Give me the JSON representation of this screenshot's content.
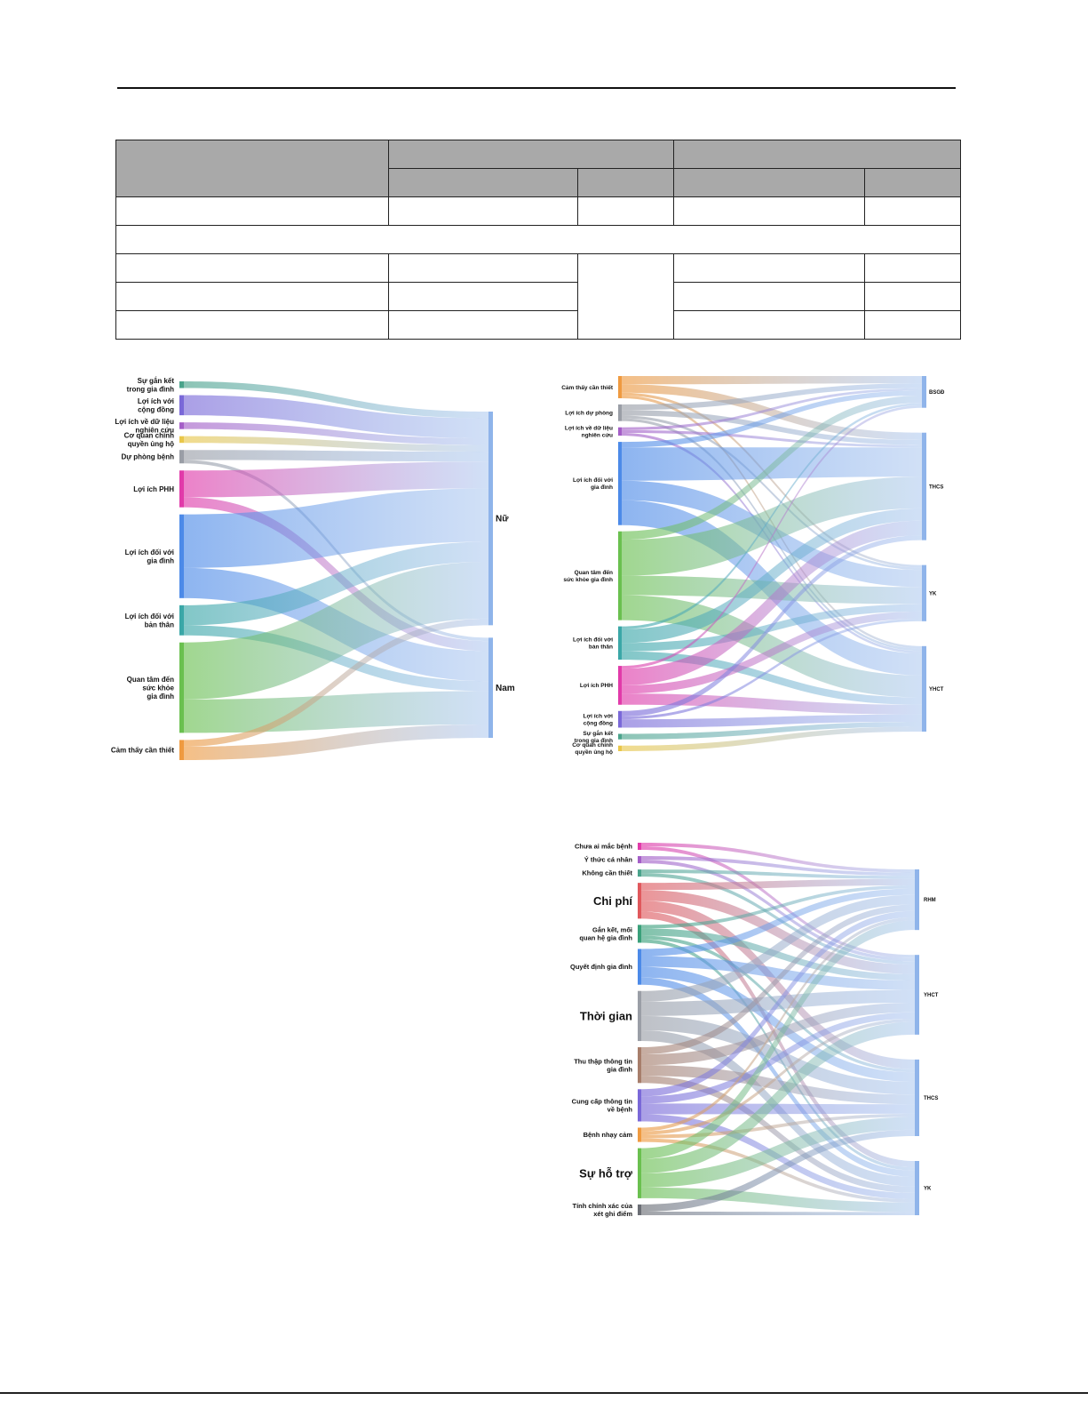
{
  "colors": {
    "target": "#8fb4ea",
    "table_header": "#a9a9a9"
  },
  "figures": [
    {
      "id": "fig1",
      "sources": [
        {
          "label": "Sự gắn kết\ntrong gia đình",
          "value": 2,
          "color": "#4aa38b",
          "weight": 400,
          "links": [
            2,
            0
          ]
        },
        {
          "label": "Lợi ích với\ncộng đồng",
          "value": 6,
          "color": "#7a68d8",
          "weight": 700,
          "links": [
            6,
            0
          ]
        },
        {
          "label": "Lợi ích về dữ liệu\nnghiên cứu",
          "value": 2,
          "color": "#a45ec7",
          "weight": 400,
          "links": [
            2,
            0
          ]
        },
        {
          "label": "Cơ quan chính\nquyền ủng hộ",
          "value": 2,
          "color": "#e9c74a",
          "weight": 400,
          "links": [
            2,
            0
          ]
        },
        {
          "label": "Dự phòng bệnh",
          "value": 4,
          "color": "#9a9ea6",
          "weight": 700,
          "links": [
            3,
            1
          ]
        },
        {
          "label": "Lợi ích PHH",
          "value": 11,
          "color": "#e13aa9",
          "weight": 400,
          "links": [
            8,
            3
          ]
        },
        {
          "label": "Lợi ích đối với\ngia đình",
          "value": 25,
          "color": "#4c8ae8",
          "weight": 700,
          "links": [
            16,
            9
          ]
        },
        {
          "label": "Lợi ích đối với\nbản thân",
          "value": 9,
          "color": "#3aa7a7",
          "weight": 700,
          "links": [
            6,
            3
          ]
        },
        {
          "label": "Quan tâm đến\nsức khỏe\ngia đình",
          "value": 27,
          "color": "#6ac04f",
          "weight": 700,
          "links": [
            17,
            10
          ]
        },
        {
          "label": "Cảm thấy cần thiết",
          "value": 6,
          "color": "#ef9a40",
          "weight": 400,
          "links": [
            2,
            4
          ]
        }
      ],
      "targets": [
        {
          "label": "Nữ",
          "weight": 700
        },
        {
          "label": "Nam",
          "weight": 700
        }
      ]
    },
    {
      "id": "fig2",
      "sources": [
        {
          "label": "Cảm thấy cần thiết",
          "value": 8,
          "color": "#ef9a40",
          "weight": 400,
          "links": [
            3,
            3,
            1,
            1
          ]
        },
        {
          "label": "Lợi ích dự phòng",
          "value": 6,
          "color": "#9a9ea6",
          "weight": 400,
          "links": [
            2,
            2,
            1,
            1
          ]
        },
        {
          "label": "Lợi ích về dữ liệu\nnghiên cứu",
          "value": 3,
          "color": "#a45ec7",
          "weight": 400,
          "links": [
            1,
            1,
            0,
            1
          ]
        },
        {
          "label": "Lợi ích đối với\ngia đình",
          "value": 30,
          "color": "#4c8ae8",
          "weight": 400,
          "links": [
            2,
            12,
            7,
            9
          ]
        },
        {
          "label": "Quan tâm đến\nsức khỏe gia đình",
          "value": 32,
          "color": "#6ac04f",
          "weight": 400,
          "links": [
            3,
            13,
            7,
            9
          ]
        },
        {
          "label": "Lợi ích đối với\nbản thân",
          "value": 12,
          "color": "#3aa7a7",
          "weight": 400,
          "links": [
            1,
            5,
            3,
            3
          ]
        },
        {
          "label": "Lợi ích PHH",
          "value": 14,
          "color": "#e13aa9",
          "weight": 400,
          "links": [
            1,
            6,
            3,
            4
          ]
        },
        {
          "label": "Lợi ích với\ncộng đồng",
          "value": 6,
          "color": "#7a68d8",
          "weight": 400,
          "links": [
            0,
            2,
            1,
            3
          ]
        },
        {
          "label": "Sự gắn kết\ntrong gia đình",
          "value": 2,
          "color": "#4aa38b",
          "weight": 400,
          "links": [
            0,
            0,
            0,
            2
          ]
        },
        {
          "label": "Cơ quan chính\nquyền ủng hộ",
          "value": 2,
          "color": "#e9c74a",
          "weight": 400,
          "links": [
            0,
            0,
            0,
            2
          ]
        }
      ],
      "targets": [
        {
          "label": "BSGĐ",
          "weight": 700
        },
        {
          "label": "THCS",
          "weight": 700
        },
        {
          "label": "YK",
          "weight": 700
        },
        {
          "label": "YHCT",
          "weight": 700
        }
      ]
    },
    {
      "id": "fig3",
      "sources": [
        {
          "label": "Chưa ai mắc bệnh",
          "value": 2,
          "color": "#e13aa9",
          "weight": 700,
          "links": [
            1,
            1,
            0,
            0
          ]
        },
        {
          "label": "Ý thức cá nhân",
          "value": 2,
          "color": "#a45ec7",
          "weight": 700,
          "links": [
            1,
            1,
            0,
            0
          ]
        },
        {
          "label": "Không cần thiết",
          "value": 2,
          "color": "#4aa38b",
          "weight": 700,
          "links": [
            1,
            1,
            0,
            0
          ]
        },
        {
          "label": "Chi phí",
          "value": 10,
          "color": "#e0585c",
          "weight": 700,
          "links": [
            2,
            3,
            3,
            2
          ]
        },
        {
          "label": "Gắn kết, mối\nquan hệ gia đình",
          "value": 5,
          "color": "#3aa07a",
          "weight": 700,
          "links": [
            1,
            2,
            1,
            1
          ]
        },
        {
          "label": "Quyết định gia đình",
          "value": 10,
          "color": "#4c8ae8",
          "weight": 700,
          "links": [
            2,
            3,
            3,
            2
          ]
        },
        {
          "label": "Thời gian",
          "value": 14,
          "color": "#9a9ea6",
          "weight": 700,
          "links": [
            3,
            4,
            4,
            3
          ]
        },
        {
          "label": "Thu thập thông tin\ngia đình",
          "value": 10,
          "color": "#a77e6b",
          "weight": 700,
          "links": [
            2,
            3,
            3,
            2
          ]
        },
        {
          "label": "Cung cấp thông tin\nvề bệnh",
          "value": 9,
          "color": "#7a68d8",
          "weight": 700,
          "links": [
            2,
            2,
            3,
            2
          ]
        },
        {
          "label": "Bệnh nhạy cảm",
          "value": 4,
          "color": "#ef9a40",
          "weight": 700,
          "links": [
            1,
            1,
            1,
            1
          ]
        },
        {
          "label": "Sự hỗ trợ",
          "value": 14,
          "color": "#6ac04f",
          "weight": 700,
          "links": [
            3,
            4,
            4,
            3
          ]
        },
        {
          "label": "Tính chính xác của\nxét ghi điểm",
          "value": 3,
          "color": "#6b6e75",
          "weight": 700,
          "links": [
            0,
            0,
            2,
            1
          ]
        }
      ],
      "targets": [
        {
          "label": "RHM",
          "weight": 700
        },
        {
          "label": "YHCT",
          "weight": 700
        },
        {
          "label": "THCS",
          "weight": 700
        },
        {
          "label": "YK",
          "weight": 700
        }
      ]
    }
  ]
}
